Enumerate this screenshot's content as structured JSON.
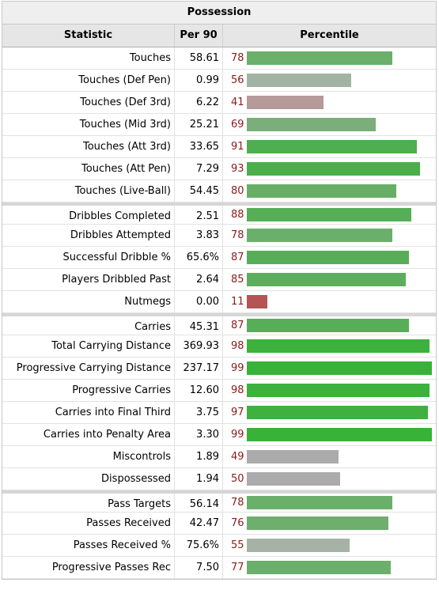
{
  "table": {
    "caption": "Possession",
    "headers": {
      "statistic": "Statistic",
      "per90": "Per 90",
      "percentile": "Percentile"
    }
  },
  "chart_data": {
    "type": "table",
    "title": "Possession",
    "columns": [
      "Statistic",
      "Per 90",
      "Percentile"
    ],
    "percentile_range": [
      0,
      100
    ],
    "groups": [
      [
        {
          "stat": "Touches",
          "per90": "58.61",
          "pct": 78,
          "color": "#6aaf6a"
        },
        {
          "stat": "Touches (Def Pen)",
          "per90": "0.99",
          "pct": 56,
          "color": "#a3b3a3"
        },
        {
          "stat": "Touches (Def 3rd)",
          "per90": "6.22",
          "pct": 41,
          "color": "#b59a9a"
        },
        {
          "stat": "Touches (Mid 3rd)",
          "per90": "25.21",
          "pct": 69,
          "color": "#7aae7a"
        },
        {
          "stat": "Touches (Att 3rd)",
          "per90": "33.65",
          "pct": 91,
          "color": "#4fae4f"
        },
        {
          "stat": "Touches (Att Pen)",
          "per90": "7.29",
          "pct": 93,
          "color": "#4aae4a"
        },
        {
          "stat": "Touches (Live-Ball)",
          "per90": "54.45",
          "pct": 80,
          "color": "#67af67"
        }
      ],
      [
        {
          "stat": "Dribbles Completed",
          "per90": "2.51",
          "pct": 88,
          "color": "#56ae56"
        },
        {
          "stat": "Dribbles Attempted",
          "per90": "3.83",
          "pct": 78,
          "color": "#6aaf6a"
        },
        {
          "stat": "Successful Dribble %",
          "per90": "65.6%",
          "pct": 87,
          "color": "#58ae58"
        },
        {
          "stat": "Players Dribbled Past",
          "per90": "2.64",
          "pct": 85,
          "color": "#5cae5c"
        },
        {
          "stat": "Nutmegs",
          "per90": "0.00",
          "pct": 11,
          "color": "#b45454"
        }
      ],
      [
        {
          "stat": "Carries",
          "per90": "45.31",
          "pct": 87,
          "color": "#58ae58"
        },
        {
          "stat": "Total Carrying Distance",
          "per90": "369.93",
          "pct": 98,
          "color": "#3cb13c"
        },
        {
          "stat": "Progressive Carrying Distance",
          "per90": "237.17",
          "pct": 99,
          "color": "#38b238"
        },
        {
          "stat": "Progressive Carries",
          "per90": "12.60",
          "pct": 98,
          "color": "#3cb13c"
        },
        {
          "stat": "Carries into Final Third",
          "per90": "3.75",
          "pct": 97,
          "color": "#40b040"
        },
        {
          "stat": "Carries into Penalty Area",
          "per90": "3.30",
          "pct": 99,
          "color": "#38b238"
        },
        {
          "stat": "Miscontrols",
          "per90": "1.89",
          "pct": 49,
          "color": "#ababab"
        },
        {
          "stat": "Dispossessed",
          "per90": "1.94",
          "pct": 50,
          "color": "#ababab"
        }
      ],
      [
        {
          "stat": "Pass Targets",
          "per90": "56.14",
          "pct": 78,
          "color": "#6aaf6a"
        },
        {
          "stat": "Passes Received",
          "per90": "42.47",
          "pct": 76,
          "color": "#6eaf6e"
        },
        {
          "stat": "Passes Received %",
          "per90": "75.6%",
          "pct": 55,
          "color": "#a5b2a5"
        },
        {
          "stat": "Progressive Passes Rec",
          "per90": "7.50",
          "pct": 77,
          "color": "#6caf6c"
        }
      ]
    ]
  }
}
